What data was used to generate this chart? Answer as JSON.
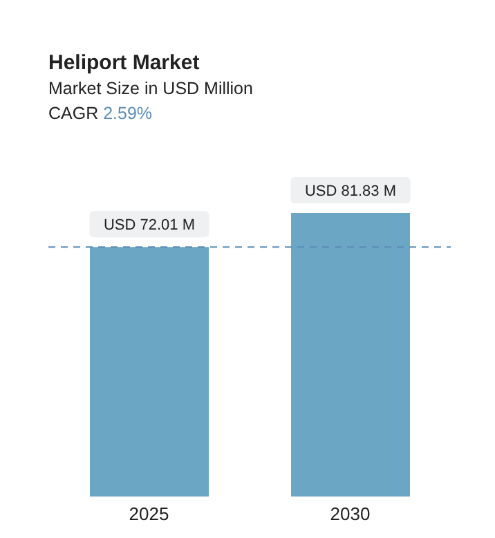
{
  "chart_data": {
    "type": "bar",
    "title": "Heliport Market",
    "subtitle": "Market Size in USD Million",
    "annotations": [
      "CAGR 2.59%"
    ],
    "categories": [
      "2025",
      "2030"
    ],
    "values": [
      72.01,
      81.83
    ],
    "value_labels": [
      "USD 72.01 M",
      "USD 81.83 M"
    ],
    "color": "#6ba6c4",
    "ref_lines": [
      {
        "axis": "y",
        "value": 72.01,
        "color": "#5b8db8",
        "line_style": "dashed"
      }
    ]
  }
}
